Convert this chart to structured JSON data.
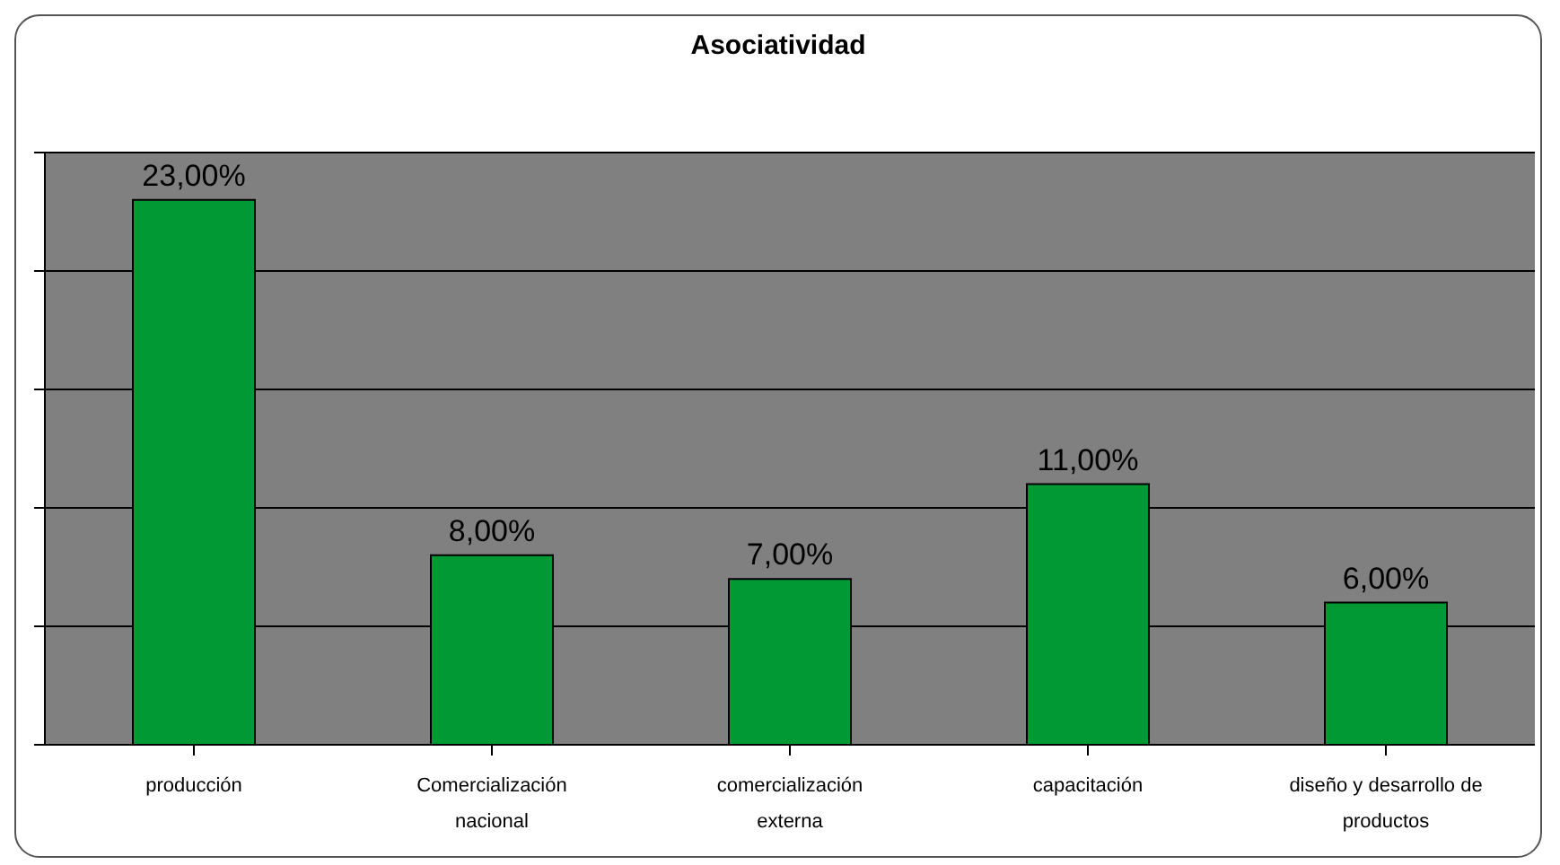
{
  "chart_data": {
    "type": "bar",
    "title": "Asociatividad",
    "categories": [
      "producción",
      "Comercialización nacional",
      "comercialización externa",
      "capacitación",
      "diseño y desarrollo de productos"
    ],
    "values": [
      23,
      8,
      7,
      11,
      6
    ],
    "value_labels": [
      "23,00%",
      "8,00%",
      "7,00%",
      "11,00%",
      "6,00%"
    ],
    "color": "#009933",
    "ylim": [
      0,
      25
    ],
    "yticks": [
      {
        "value": 0,
        "label": null
      },
      {
        "value": 5,
        "label": null
      },
      {
        "value": 10,
        "label": null
      },
      {
        "value": 15,
        "label": null
      },
      {
        "value": 20,
        "label": null
      },
      {
        "value": 25,
        "label": null
      }
    ],
    "tick_labels": "x",
    "grid": "y"
  }
}
